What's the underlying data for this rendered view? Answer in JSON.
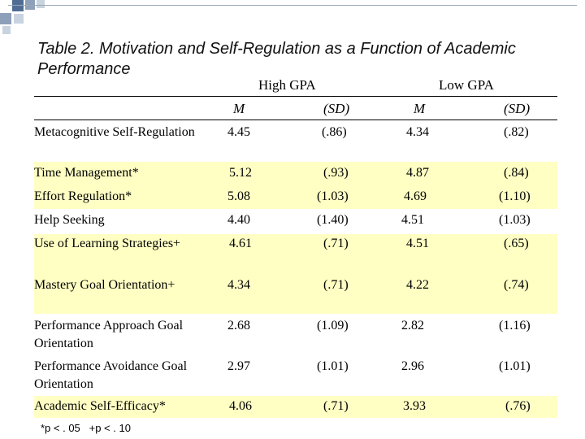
{
  "title": "Table 2. Motivation and Self-Regulation as a Function of Academic Performance",
  "groups": {
    "high": "High GPA",
    "low": "Low GPA"
  },
  "subheaders": {
    "mean": "M",
    "sd": "(SD)"
  },
  "rows": [
    {
      "label": "Metacognitive Self-Regulation",
      "high_m": "4.45",
      "high_sd": "(.86)",
      "low_m": "4.34",
      "low_sd": "(.82)",
      "highlight": false
    },
    {
      "label": "Time Management*",
      "high_m": "5.12",
      "high_sd": "(.93)",
      "low_m": "4.87",
      "low_sd": "(.84)",
      "highlight": true
    },
    {
      "label": "Effort Regulation*",
      "high_m": "5.08",
      "high_sd": "(1.03)",
      "low_m": "4.69",
      "low_sd": "(1.10)",
      "highlight": true
    },
    {
      "label": "Help Seeking",
      "high_m": "4.40",
      "high_sd": "(1.40)",
      "low_m": "4.51",
      "low_sd": "(1.03)",
      "highlight": false
    },
    {
      "label": "Use of Learning Strategies+",
      "high_m": "4.61",
      "high_sd": "(.71)",
      "low_m": "4.51",
      "low_sd": "(.65)",
      "highlight": true
    },
    {
      "label": "Mastery Goal Orientation+",
      "high_m": "4.34",
      "high_sd": "(.71)",
      "low_m": "4.22",
      "low_sd": "(.74)",
      "highlight": true
    },
    {
      "label": "Performance Approach Goal Orientation",
      "high_m": "2.68",
      "high_sd": "(1.09)",
      "low_m": "2.82",
      "low_sd": "(1.16)",
      "highlight": false
    },
    {
      "label": "Performance Avoidance Goal Orientation",
      "high_m": "2.97",
      "high_sd": "(1.01)",
      "low_m": "2.96",
      "low_sd": "(1.01)",
      "highlight": false
    },
    {
      "label": "Academic Self-Efficacy*",
      "high_m": "4.06",
      "high_sd": "(.71)",
      "low_m": "3.93",
      "low_sd": "(.76)",
      "highlight": true
    }
  ],
  "footnote": "*p < . 05   +p < . 10",
  "colors": {
    "highlight": "#ffffc4",
    "deco_dark": "#4f6d94",
    "deco_light": "#c9d3e0"
  }
}
